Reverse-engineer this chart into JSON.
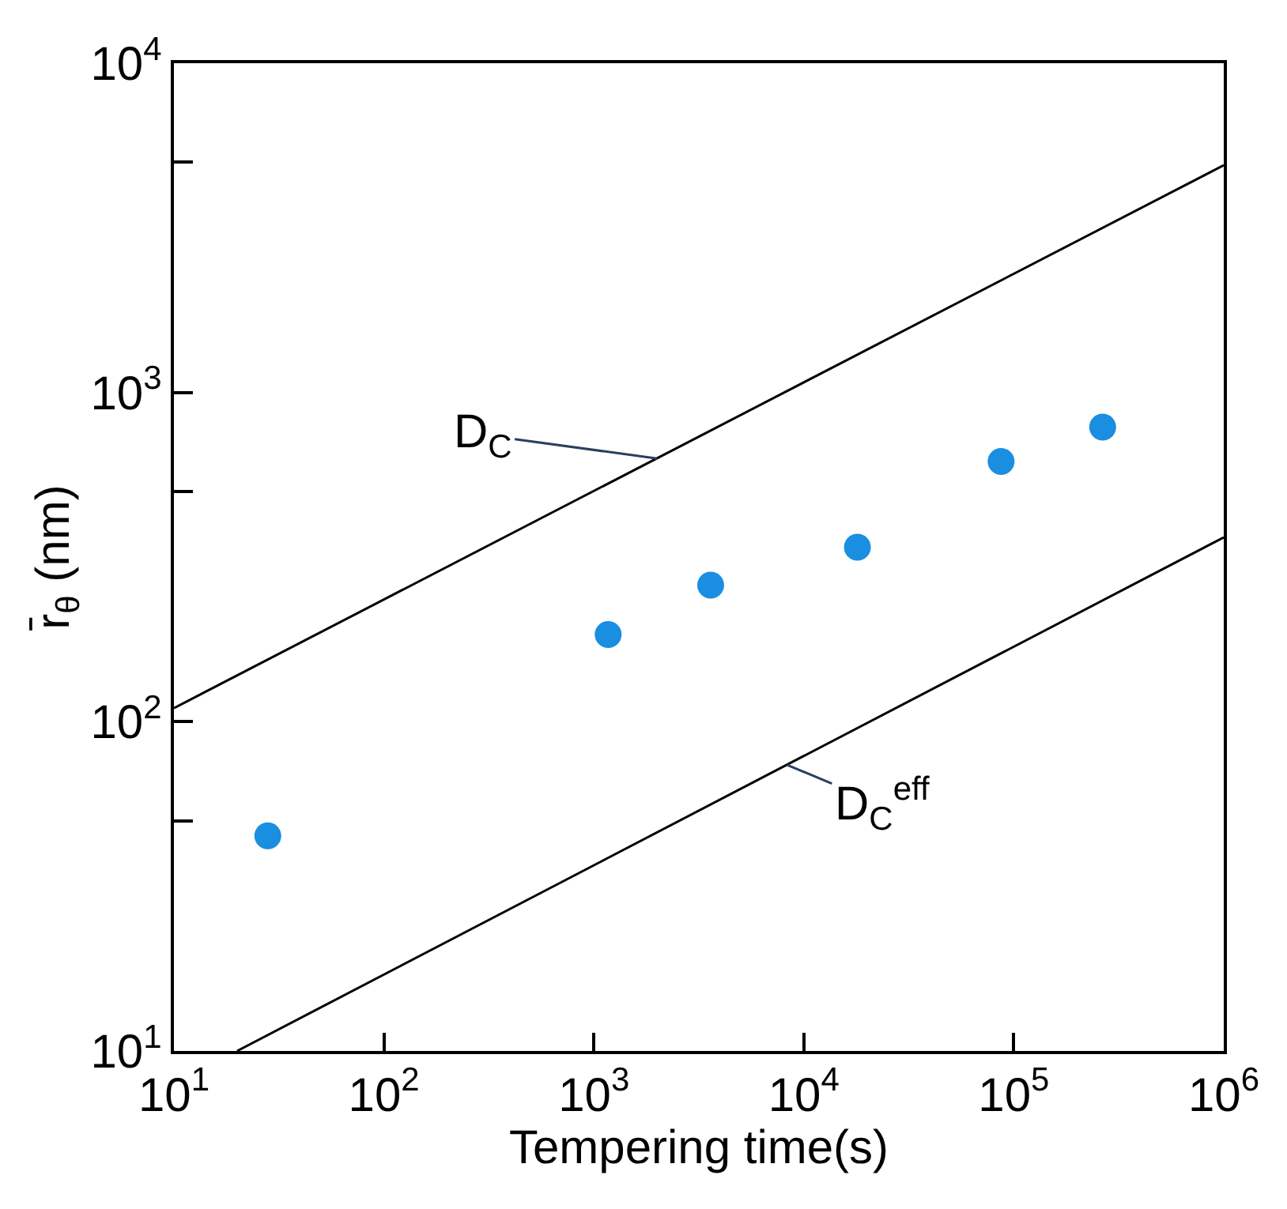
{
  "chart_data": {
    "type": "scatter",
    "xlabel": "Tempering time(s)",
    "ylabel": "r̄$_{θ}$ (nm)",
    "log": "xy",
    "xlim": [
      10,
      1000000
    ],
    "ylim": [
      10,
      10000
    ],
    "xticks": [
      {
        "value": 10,
        "label": "10$^{1}$"
      },
      {
        "value": 100,
        "label": "10$^{2}$"
      },
      {
        "value": 1000,
        "label": "10$^{3}$"
      },
      {
        "value": 10000,
        "label": "10$^{4}$"
      },
      {
        "value": 100000,
        "label": "10$^{5}$"
      },
      {
        "value": 1000000,
        "label": "10$^{6}$"
      }
    ],
    "yticks": [
      {
        "value": 10,
        "label": "10$^{1}$"
      },
      {
        "value": 50,
        "label": null
      },
      {
        "value": 100,
        "label": "10$^{2}$"
      },
      {
        "value": 500,
        "label": null
      },
      {
        "value": 1000,
        "label": "10$^{3}$"
      },
      {
        "value": 5000,
        "label": null
      },
      {
        "value": 10000,
        "label": "10$^{4}$"
      }
    ],
    "series": [
      {
        "color": "#1a8ee0",
        "x": [
          28,
          1170,
          3600,
          18000,
          87000,
          265000
        ],
        "values": [
          45,
          184,
          260,
          339,
          617,
          785
        ]
      },
      {
        "type": "line",
        "color": "#000000",
        "x": [
          10,
          1000000
        ],
        "values": [
          110,
          4900
        ]
      },
      {
        "type": "line",
        "color": "#000000",
        "x": [
          20,
          1000000
        ],
        "values": [
          10,
          363
        ]
      }
    ],
    "annotations": [
      {
        "text": "D$_{C}$",
        "x": 2000,
        "y": 630
      },
      {
        "text": "D$_{C}$$^{eff}$",
        "x": 8300,
        "y": 74
      }
    ]
  }
}
